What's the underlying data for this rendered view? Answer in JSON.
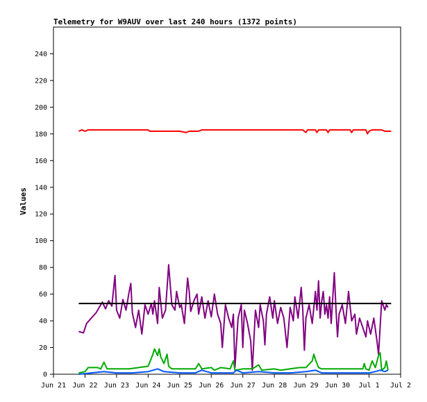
{
  "chart_data": {
    "type": "line",
    "title": "Telemetry for W9AUV over last 240 hours (1372 points)",
    "xlabel": "",
    "ylabel": "Values",
    "ylim": [
      0,
      260
    ],
    "yticks": [
      0,
      20,
      40,
      60,
      80,
      100,
      120,
      140,
      160,
      180,
      200,
      220,
      240
    ],
    "xlim_days": [
      21,
      32
    ],
    "xticks": [
      {
        "day": 21,
        "label": "Jun 21"
      },
      {
        "day": 22,
        "label": "Jun 22"
      },
      {
        "day": 23,
        "label": "Jun 23"
      },
      {
        "day": 24,
        "label": "Jun 24"
      },
      {
        "day": 25,
        "label": "Jun 25"
      },
      {
        "day": 26,
        "label": "Jun 26"
      },
      {
        "day": 27,
        "label": "Jun 27"
      },
      {
        "day": 28,
        "label": "Jun 28"
      },
      {
        "day": 29,
        "label": "Jun 29"
      },
      {
        "day": 30,
        "label": "Jun 30"
      },
      {
        "day": 31,
        "label": "Jul 1"
      },
      {
        "day": 32,
        "label": "Jul 2"
      }
    ],
    "grid": false,
    "legend": "none",
    "series": [
      {
        "color": "#ff0000",
        "points": [
          [
            21.8,
            182
          ],
          [
            21.9,
            183
          ],
          [
            22.0,
            182
          ],
          [
            22.1,
            183
          ],
          [
            22.5,
            183
          ],
          [
            23.0,
            183
          ],
          [
            23.5,
            183
          ],
          [
            24.0,
            183
          ],
          [
            24.05,
            182
          ],
          [
            24.5,
            182
          ],
          [
            25.0,
            182
          ],
          [
            25.2,
            181
          ],
          [
            25.3,
            182
          ],
          [
            25.6,
            182
          ],
          [
            25.7,
            183
          ],
          [
            26.0,
            183
          ],
          [
            26.5,
            183
          ],
          [
            27.0,
            183
          ],
          [
            27.5,
            183
          ],
          [
            28.0,
            183
          ],
          [
            28.5,
            183
          ],
          [
            28.9,
            183
          ],
          [
            29.0,
            181
          ],
          [
            29.05,
            183
          ],
          [
            29.3,
            183
          ],
          [
            29.35,
            181
          ],
          [
            29.4,
            183
          ],
          [
            29.65,
            183
          ],
          [
            29.7,
            181
          ],
          [
            29.75,
            183
          ],
          [
            30.4,
            183
          ],
          [
            30.45,
            181
          ],
          [
            30.5,
            183
          ],
          [
            30.9,
            183
          ],
          [
            30.95,
            180
          ],
          [
            31.0,
            182
          ],
          [
            31.1,
            183
          ],
          [
            31.4,
            183
          ],
          [
            31.5,
            182
          ],
          [
            31.7,
            182
          ]
        ]
      },
      {
        "color": "#800080",
        "points": [
          [
            21.8,
            32
          ],
          [
            21.95,
            31
          ],
          [
            22.05,
            38
          ],
          [
            22.2,
            42
          ],
          [
            22.35,
            46
          ],
          [
            22.45,
            50
          ],
          [
            22.55,
            54
          ],
          [
            22.65,
            49
          ],
          [
            22.75,
            55
          ],
          [
            22.85,
            51
          ],
          [
            22.95,
            74
          ],
          [
            23.0,
            48
          ],
          [
            23.1,
            42
          ],
          [
            23.2,
            56
          ],
          [
            23.3,
            48
          ],
          [
            23.4,
            62
          ],
          [
            23.45,
            68
          ],
          [
            23.5,
            46
          ],
          [
            23.6,
            35
          ],
          [
            23.7,
            48
          ],
          [
            23.8,
            30
          ],
          [
            23.9,
            52
          ],
          [
            24.0,
            45
          ],
          [
            24.1,
            53
          ],
          [
            24.15,
            45
          ],
          [
            24.2,
            55
          ],
          [
            24.3,
            38
          ],
          [
            24.35,
            65
          ],
          [
            24.45,
            42
          ],
          [
            24.55,
            48
          ],
          [
            24.65,
            82
          ],
          [
            24.75,
            52
          ],
          [
            24.85,
            48
          ],
          [
            24.9,
            62
          ],
          [
            25.0,
            50
          ],
          [
            25.05,
            52
          ],
          [
            25.15,
            38
          ],
          [
            25.25,
            72
          ],
          [
            25.3,
            62
          ],
          [
            25.35,
            47
          ],
          [
            25.45,
            55
          ],
          [
            25.55,
            60
          ],
          [
            25.6,
            45
          ],
          [
            25.7,
            58
          ],
          [
            25.8,
            42
          ],
          [
            25.9,
            55
          ],
          [
            26.0,
            43
          ],
          [
            26.1,
            60
          ],
          [
            26.2,
            45
          ],
          [
            26.3,
            38
          ],
          [
            26.35,
            20
          ],
          [
            26.45,
            52
          ],
          [
            26.55,
            42
          ],
          [
            26.65,
            35
          ],
          [
            26.7,
            45
          ],
          [
            26.75,
            5
          ],
          [
            26.85,
            42
          ],
          [
            26.95,
            52
          ],
          [
            27.0,
            20
          ],
          [
            27.05,
            48
          ],
          [
            27.15,
            38
          ],
          [
            27.25,
            25
          ],
          [
            27.3,
            3
          ],
          [
            27.4,
            48
          ],
          [
            27.5,
            35
          ],
          [
            27.55,
            52
          ],
          [
            27.65,
            40
          ],
          [
            27.7,
            22
          ],
          [
            27.75,
            45
          ],
          [
            27.85,
            58
          ],
          [
            27.95,
            42
          ],
          [
            28.0,
            55
          ],
          [
            28.1,
            38
          ],
          [
            28.2,
            50
          ],
          [
            28.3,
            42
          ],
          [
            28.4,
            20
          ],
          [
            28.5,
            50
          ],
          [
            28.6,
            40
          ],
          [
            28.65,
            58
          ],
          [
            28.75,
            42
          ],
          [
            28.85,
            65
          ],
          [
            28.9,
            48
          ],
          [
            28.95,
            18
          ],
          [
            29.0,
            42
          ],
          [
            29.1,
            52
          ],
          [
            29.2,
            38
          ],
          [
            29.3,
            62
          ],
          [
            29.35,
            48
          ],
          [
            29.4,
            70
          ],
          [
            29.45,
            42
          ],
          [
            29.5,
            55
          ],
          [
            29.55,
            62
          ],
          [
            29.6,
            45
          ],
          [
            29.65,
            52
          ],
          [
            29.7,
            42
          ],
          [
            29.75,
            58
          ],
          [
            29.8,
            38
          ],
          [
            29.9,
            76
          ],
          [
            29.95,
            50
          ],
          [
            30.0,
            28
          ],
          [
            30.05,
            45
          ],
          [
            30.15,
            52
          ],
          [
            30.25,
            38
          ],
          [
            30.35,
            62
          ],
          [
            30.45,
            40
          ],
          [
            30.55,
            45
          ],
          [
            30.6,
            30
          ],
          [
            30.7,
            42
          ],
          [
            30.8,
            35
          ],
          [
            30.9,
            28
          ],
          [
            30.95,
            40
          ],
          [
            31.05,
            30
          ],
          [
            31.15,
            42
          ],
          [
            31.25,
            25
          ],
          [
            31.3,
            15
          ],
          [
            31.4,
            55
          ],
          [
            31.5,
            48
          ],
          [
            31.55,
            52
          ],
          [
            31.6,
            50
          ]
        ]
      },
      {
        "color": "#000000",
        "points": [
          [
            21.8,
            53
          ],
          [
            31.7,
            53
          ]
        ]
      },
      {
        "color": "#00aa00",
        "points": [
          [
            21.8,
            1
          ],
          [
            22.0,
            2
          ],
          [
            22.1,
            5
          ],
          [
            22.4,
            5
          ],
          [
            22.5,
            4
          ],
          [
            22.6,
            9
          ],
          [
            22.7,
            4
          ],
          [
            23.0,
            4
          ],
          [
            23.4,
            4
          ],
          [
            23.7,
            5
          ],
          [
            24.0,
            6
          ],
          [
            24.15,
            15
          ],
          [
            24.2,
            19
          ],
          [
            24.3,
            14
          ],
          [
            24.35,
            19
          ],
          [
            24.4,
            13
          ],
          [
            24.5,
            8
          ],
          [
            24.6,
            15
          ],
          [
            24.65,
            6
          ],
          [
            24.75,
            4
          ],
          [
            25.0,
            4
          ],
          [
            25.5,
            4
          ],
          [
            25.6,
            8
          ],
          [
            25.7,
            4
          ],
          [
            26.0,
            5
          ],
          [
            26.1,
            3
          ],
          [
            26.3,
            5
          ],
          [
            26.6,
            4
          ],
          [
            26.7,
            10
          ],
          [
            26.75,
            3
          ],
          [
            27.0,
            4
          ],
          [
            27.3,
            4
          ],
          [
            27.5,
            7
          ],
          [
            27.6,
            3
          ],
          [
            28.0,
            4
          ],
          [
            28.2,
            3
          ],
          [
            28.5,
            4
          ],
          [
            28.8,
            5
          ],
          [
            29.0,
            5
          ],
          [
            29.2,
            10
          ],
          [
            29.25,
            15
          ],
          [
            29.3,
            11
          ],
          [
            29.4,
            5
          ],
          [
            29.5,
            4
          ],
          [
            30.0,
            4
          ],
          [
            30.4,
            4
          ],
          [
            30.8,
            4
          ],
          [
            30.85,
            8
          ],
          [
            30.9,
            4
          ],
          [
            31.0,
            3
          ],
          [
            31.1,
            10
          ],
          [
            31.2,
            5
          ],
          [
            31.3,
            14
          ],
          [
            31.35,
            16
          ],
          [
            31.4,
            3
          ],
          [
            31.5,
            5
          ],
          [
            31.55,
            10
          ],
          [
            31.6,
            3
          ]
        ]
      },
      {
        "color": "#0055ff",
        "points": [
          [
            21.8,
            0
          ],
          [
            22.2,
            1
          ],
          [
            22.6,
            2
          ],
          [
            23.0,
            1
          ],
          [
            23.5,
            1
          ],
          [
            24.0,
            2
          ],
          [
            24.3,
            4
          ],
          [
            24.5,
            2
          ],
          [
            25.0,
            1
          ],
          [
            25.5,
            1
          ],
          [
            25.7,
            3
          ],
          [
            26.0,
            1
          ],
          [
            26.7,
            1
          ],
          [
            26.8,
            3
          ],
          [
            27.0,
            1
          ],
          [
            27.5,
            2
          ],
          [
            28.0,
            1
          ],
          [
            28.5,
            1
          ],
          [
            29.0,
            2
          ],
          [
            29.3,
            3
          ],
          [
            29.5,
            1
          ],
          [
            30.0,
            1
          ],
          [
            30.5,
            1
          ],
          [
            31.0,
            1
          ],
          [
            31.2,
            2
          ],
          [
            31.35,
            3
          ],
          [
            31.5,
            2
          ],
          [
            31.6,
            3
          ]
        ]
      }
    ]
  }
}
